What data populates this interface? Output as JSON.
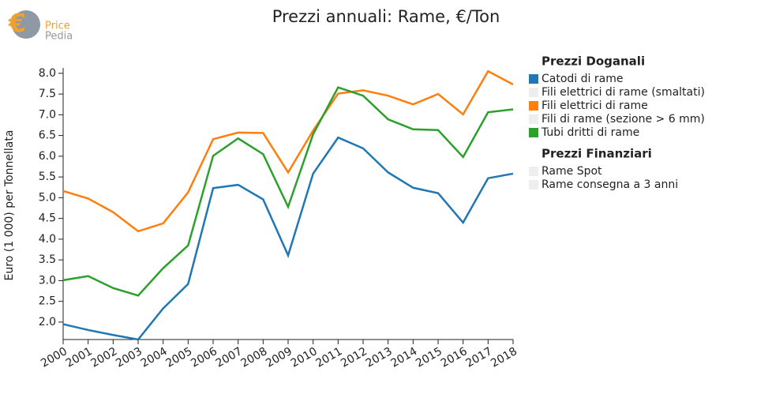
{
  "logo": {
    "line1": "Price",
    "line2": "Pedia"
  },
  "chart_data": {
    "type": "line",
    "title": "Prezzi annuali: Rame, €/Ton",
    "y_label": "Euro (1 000) per Tonnellata",
    "x": [
      2000,
      2001,
      2002,
      2003,
      2004,
      2005,
      2006,
      2007,
      2008,
      2009,
      2010,
      2011,
      2012,
      2013,
      2014,
      2015,
      2016,
      2017,
      2018
    ],
    "xlim": [
      2000,
      2018
    ],
    "xticks": [
      2000,
      2001,
      2002,
      2003,
      2004,
      2005,
      2006,
      2007,
      2008,
      2009,
      2010,
      2011,
      2012,
      2013,
      2014,
      2015,
      2016,
      2017,
      2018
    ],
    "ylim": [
      1.58,
      8.13
    ],
    "yticks": [
      {
        "value": 2,
        "label": "2.0"
      },
      2.5,
      {
        "value": 3,
        "label": "3.0"
      },
      3.5,
      {
        "value": 4,
        "label": "4.0"
      },
      4.5,
      {
        "value": 5,
        "label": "5.0"
      },
      5.5,
      {
        "value": 6,
        "label": "6.0"
      },
      6.5,
      {
        "value": 7,
        "label": "7.0"
      },
      7.5,
      {
        "value": 8,
        "label": "8.0"
      }
    ],
    "series_groups": [
      {
        "title": "Prezzi Doganali",
        "series": [
          {
            "name": "Catodi di rame",
            "color": "#1f77b4",
            "values": [
              1.95,
              1.81,
              1.69,
              1.58,
              2.33,
              2.92,
              5.23,
              5.31,
              4.96,
              3.61,
              5.58,
              6.45,
              6.19,
              5.61,
              5.24,
              5.11,
              4.4,
              5.47,
              5.58
            ]
          },
          {
            "name": "Fili elettrici di rame (smaltati)",
            "color": "#eeeeee"
          },
          {
            "name": "Fili elettrici di rame",
            "color": "#ff7f0e",
            "values": [
              5.16,
              4.98,
              4.65,
              4.19,
              4.38,
              5.13,
              6.41,
              6.57,
              6.56,
              5.61,
              6.62,
              7.51,
              7.59,
              7.46,
              7.25,
              7.5,
              7.01,
              8.05,
              7.73
            ]
          },
          {
            "name": "Fili di rame (sezione > 6 mm)",
            "color": "#eeeeee"
          },
          {
            "name": "Tubi dritti di rame",
            "color": "#2ca02c",
            "values": [
              3.01,
              3.11,
              2.82,
              2.64,
              3.3,
              3.85,
              6.01,
              6.43,
              6.05,
              4.78,
              6.53,
              7.66,
              7.46,
              6.89,
              6.65,
              6.63,
              5.98,
              7.06,
              7.13
            ]
          }
        ]
      },
      {
        "title": "Prezzi Finanziari",
        "series": [
          {
            "name": "Rame Spot",
            "color": "#eeeeee"
          },
          {
            "name": "Rame consegna a 3 anni",
            "color": "#eeeeee"
          }
        ]
      }
    ]
  }
}
